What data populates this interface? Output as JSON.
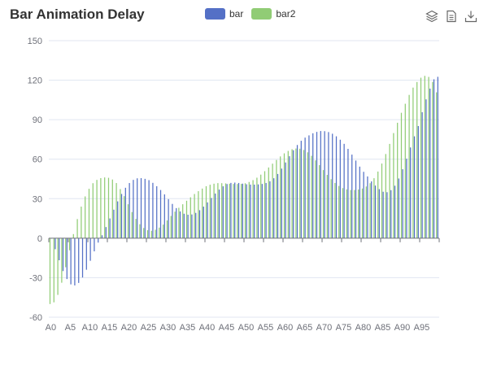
{
  "toolbox": {
    "icons": [
      "magic-type-icon",
      "data-view-icon",
      "save-image-icon"
    ]
  },
  "chart_data": {
    "type": "bar",
    "title": "Bar Animation Delay",
    "legend": {
      "position": "top-center",
      "items": [
        "bar",
        "bar2"
      ]
    },
    "colors": {
      "bar": "#5470c6",
      "bar2": "#91cc75",
      "grid": "#e0e6f1",
      "axis": "#6e7079"
    },
    "ylim": [
      -60,
      150
    ],
    "yticks": [
      -60,
      -30,
      0,
      30,
      60,
      90,
      120,
      150
    ],
    "ytick_labels": [
      "-60",
      "-30",
      "0",
      "30",
      "60",
      "90",
      "120",
      "150"
    ],
    "grid": true,
    "categories": [
      "A0",
      "A1",
      "A2",
      "A3",
      "A4",
      "A5",
      "A6",
      "A7",
      "A8",
      "A9",
      "A10",
      "A11",
      "A12",
      "A13",
      "A14",
      "A15",
      "A16",
      "A17",
      "A18",
      "A19",
      "A20",
      "A21",
      "A22",
      "A23",
      "A24",
      "A25",
      "A26",
      "A27",
      "A28",
      "A29",
      "A30",
      "A31",
      "A32",
      "A33",
      "A34",
      "A35",
      "A36",
      "A37",
      "A38",
      "A39",
      "A40",
      "A41",
      "A42",
      "A43",
      "A44",
      "A45",
      "A46",
      "A47",
      "A48",
      "A49",
      "A50",
      "A51",
      "A52",
      "A53",
      "A54",
      "A55",
      "A56",
      "A57",
      "A58",
      "A59",
      "A60",
      "A61",
      "A62",
      "A63",
      "A64",
      "A65",
      "A66",
      "A67",
      "A68",
      "A69",
      "A70",
      "A71",
      "A72",
      "A73",
      "A74",
      "A75",
      "A76",
      "A77",
      "A78",
      "A79",
      "A80",
      "A81",
      "A82",
      "A83",
      "A84",
      "A85",
      "A86",
      "A87",
      "A88",
      "A89",
      "A90",
      "A91",
      "A92",
      "A93",
      "A94",
      "A95",
      "A96",
      "A97",
      "A98",
      "A99"
    ],
    "xtick_labels": [
      "A0",
      "A5",
      "A10",
      "A15",
      "A20",
      "A25",
      "A30",
      "A35",
      "A40",
      "A45",
      "A50",
      "A55",
      "A60",
      "A65",
      "A70",
      "A75",
      "A80",
      "A85",
      "A90",
      "A95"
    ],
    "series": [
      {
        "name": "bar",
        "values": [
          -0.0,
          -8.38,
          -16.76,
          -24.96,
          -31.04,
          -35.07,
          -35.87,
          -33.97,
          -29.85,
          -23.96,
          -17.15,
          -9.99,
          -3.35,
          2.21,
          8.45,
          15.0,
          21.65,
          27.96,
          33.59,
          38.29,
          41.88,
          44.28,
          45.47,
          45.62,
          45.08,
          44.09,
          42.03,
          39.49,
          36.59,
          33.26,
          29.64,
          26.03,
          22.84,
          20.31,
          18.58,
          17.82,
          18.03,
          19.24,
          21.28,
          23.97,
          27.18,
          30.56,
          33.91,
          36.91,
          39.4,
          41.13,
          41.99,
          42.23,
          41.95,
          41.42,
          40.95,
          40.7,
          40.69,
          40.85,
          41.21,
          41.94,
          43.23,
          45.53,
          48.77,
          52.85,
          57.49,
          62.26,
          66.79,
          70.78,
          73.99,
          76.37,
          78.08,
          79.67,
          80.73,
          81.39,
          81.28,
          80.59,
          79.33,
          77.37,
          74.78,
          71.65,
          67.84,
          63.47,
          58.96,
          54.35,
          50.4,
          46.89,
          43.12,
          39.95,
          37.26,
          35.28,
          34.93,
          36.49,
          39.85,
          45.32,
          52.36,
          60.35,
          68.91,
          77.36,
          85.16,
          95.68,
          105.44,
          113.61,
          120.67,
          122.55
        ]
      },
      {
        "name": "bar2",
        "values": [
          -50.0,
          -48.71,
          -43.06,
          -33.82,
          -22.05,
          -9.17,
          3.11,
          14.52,
          23.98,
          31.73,
          37.5,
          41.77,
          44.27,
          45.64,
          46.13,
          45.86,
          44.55,
          41.89,
          37.29,
          31.93,
          25.77,
          19.85,
          14.68,
          10.61,
          7.74,
          6.05,
          5.61,
          6.41,
          8.03,
          10.3,
          13.48,
          16.93,
          20.19,
          23.11,
          25.77,
          28.43,
          31.05,
          33.56,
          35.7,
          37.68,
          39.49,
          40.61,
          41.39,
          41.83,
          41.78,
          41.61,
          41.36,
          41.2,
          41.15,
          41.23,
          41.72,
          42.69,
          44.1,
          45.95,
          48.27,
          50.88,
          53.7,
          56.59,
          59.42,
          62.09,
          64.43,
          66.28,
          67.55,
          68.11,
          67.95,
          66.98,
          65.22,
          62.58,
          59.1,
          55.48,
          51.73,
          48.07,
          44.82,
          41.94,
          39.66,
          38.05,
          37.06,
          36.59,
          36.58,
          36.95,
          37.73,
          39.28,
          41.78,
          45.55,
          50.61,
          56.69,
          63.93,
          71.61,
          79.82,
          87.66,
          95.24,
          102.09,
          108.81,
          114.36,
          118.6,
          121.87,
          123.28,
          122.48,
          118.65,
          110.76
        ]
      }
    ]
  }
}
